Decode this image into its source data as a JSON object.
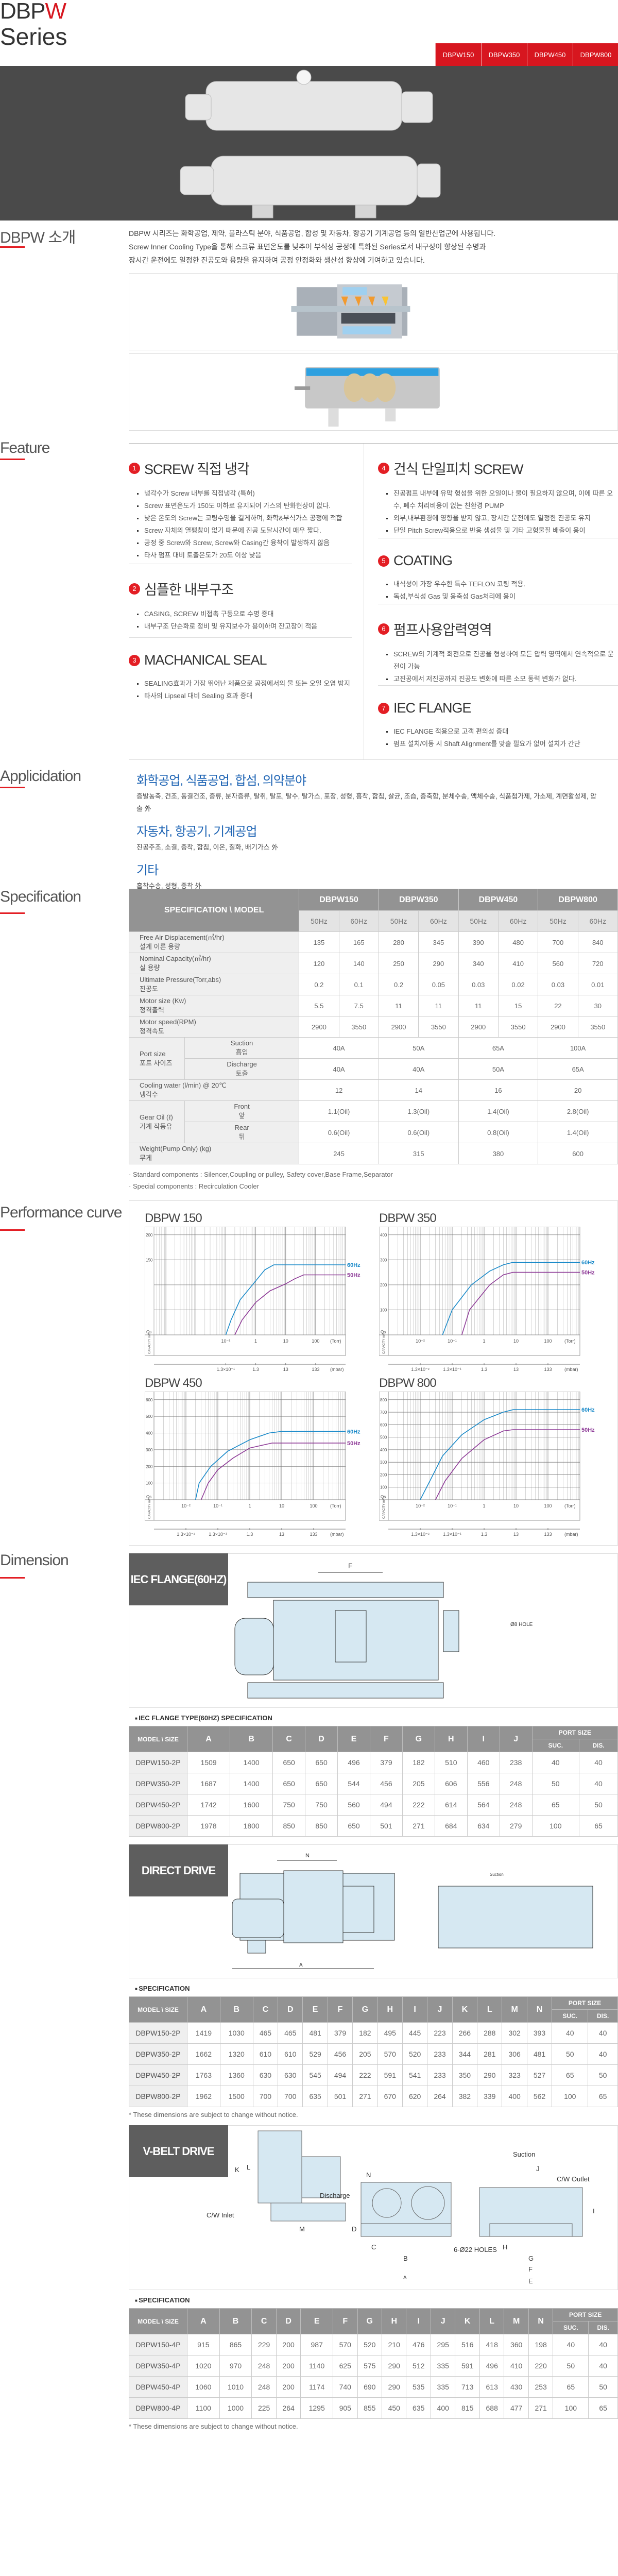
{
  "header": {
    "brand_main": "DBP",
    "brand_accent": "W",
    "brand_sub": "Series",
    "tabs": [
      "DBPW150",
      "DBPW350",
      "DBPW450",
      "DBPW800"
    ],
    "accent_color": "#d7161f"
  },
  "intro": {
    "title": "DBPW 소개",
    "lines": [
      "DBPW 시리즈는 화학공업, 제약, 플라스틱 분야, 식품공업, 합성 및 자동차, 항공기 기계공업 등의 일반산업군에 사용됩니다.",
      "Screw Inner Cooling Type을 통해 스크류 표면온도를 낮추어 부식성 공정에 특화된 Series로서 내구성이 향상된 수명과",
      "장시간 운전에도 일정한 진공도와 용량을 유지하여 공정 안정화와 생산성 향상에 기여하고 있습니다."
    ]
  },
  "feature": {
    "title": "Feature",
    "left": [
      {
        "num": "1",
        "title": "SCREW 직접 냉각",
        "bullets": [
          "냉각수가 Screw 내부를 직접냉각 (특허)",
          "Screw 표면온도가 150도 이하로 유지되어 가스의 탄화현상이 없다.",
          "낮은 온도의 Screw는 코팅수명을 길게하며, 화학&부식가스 공정에 적합",
          "Screw 자체의 열팽창이 없기 때문에 진공 도달시간이 매우 짧다.",
          "공정 중 Screw와 Screw, Screw와 Casing간 융착이 발생하지 않음",
          "타사 펌프 대비 토출온도가 20도 이상 낮음"
        ]
      },
      {
        "num": "2",
        "title": "심플한 내부구조",
        "bullets": [
          "CASING, SCREW 비접촉 구동으로 수명 증대",
          "내부구조 단순화로 정비 및 유지보수가 용이하며 잔고장이 적음"
        ]
      },
      {
        "num": "3",
        "title": "MACHANICAL SEAL",
        "bullets": [
          "SEALING효과가 가장 뛰어난 제품으로 공정에서의 물 또는 오일 오염 방지",
          "타사의 Lipseal 대비 Sealing 효과 증대"
        ]
      }
    ],
    "right": [
      {
        "num": "4",
        "title": "건식 단일피치 SCREW",
        "bullets": [
          "진공펌프 내부에 유막 형성을 위한 오일이나 물이 필요하지 않으며, 이에 따른 오수, 폐수 처리비용이 없는 친환경 PUMP",
          "외부,내부환경에 영향을 받지 않고, 장시간 운전에도 일정한 진공도 유지",
          "단일 Pitch Screw적용으로 반응 생성물 및 기타 고형물질 배출이 용이"
        ]
      },
      {
        "num": "5",
        "title": "COATING",
        "bullets": [
          "내식성이 가장 우수한 특수 TEFLON 코팅 적용.",
          "독성,부식성 Gas 및 응축성 Gas처리에 용이"
        ]
      },
      {
        "num": "6",
        "title": "펌프사용압력영역",
        "bullets": [
          "SCREW의 기계적 회전으로 진공을 형성하여 모든 압력 영역에서 연속적으로 운전이 가능",
          "고진공에서 저진공까지 진공도 변화에 따른 소모 동력 변화가 없다."
        ]
      },
      {
        "num": "7",
        "title": "IEC FLANGE",
        "bullets": [
          "IEC FLANGE 적용으로 고객 편의성 증대",
          "펌프 설치/이동 시 Shaft Alignment를 맞출 필요가 없어 설치가 간단"
        ]
      }
    ]
  },
  "application": {
    "title": "Applicidation",
    "groups": [
      {
        "heading": "화학공업, 식품공업, 합섬, 의약분야",
        "text": "증발농축, 건조, 동결건조, 증류, 분자증류, 탈취, 탈포, 탈수, 탈가스, 포장, 성형, 흡착, 함침, 살균, 조습, 증축합, 분체수송, 액체수송, 식품첨가제, 가소제, 계면활성제, 압출 外"
      },
      {
        "heading": "자동차, 항공기, 기계공업",
        "text": "진공주조, 소결, 증착, 함침, 이온, 질화, 배기가스 外"
      },
      {
        "heading": "기타",
        "text": "흡착수송, 성형, 증착 外"
      }
    ]
  },
  "specification": {
    "title": "Specification",
    "corner": "SPECIFICATION \\ MODEL",
    "models": [
      "DBPW150",
      "DBPW350",
      "DBPW450",
      "DBPW800"
    ],
    "freqs": [
      "50Hz",
      "60Hz"
    ],
    "rows": [
      {
        "en": "Free Air Displacement(㎥/hr)",
        "ko": "설계 이론 용량",
        "values": [
          "135",
          "165",
          "280",
          "345",
          "390",
          "480",
          "700",
          "840"
        ]
      },
      {
        "en": "Nominal Capacity(㎥/hr)",
        "ko": "실 용량",
        "values": [
          "120",
          "140",
          "250",
          "290",
          "340",
          "410",
          "560",
          "720"
        ]
      },
      {
        "en": "Ultimate Pressure(Torr,abs)",
        "ko": "진공도",
        "values": [
          "0.2",
          "0.1",
          "0.2",
          "0.05",
          "0.03",
          "0.02",
          "0.03",
          "0.01"
        ]
      },
      {
        "en": "Motor size (Kw)",
        "ko": "정격출력",
        "values": [
          "5.5",
          "7.5",
          "11",
          "11",
          "11",
          "15",
          "22",
          "30"
        ]
      },
      {
        "en": "Motor speed(RPM)",
        "ko": "정격속도",
        "values": [
          "2900",
          "3550",
          "2900",
          "3550",
          "2900",
          "3550",
          "2900",
          "3550"
        ]
      }
    ],
    "groups": [
      {
        "en": "Port size",
        "ko": "포트 사이즈",
        "subs": [
          {
            "en": "Suction",
            "ko": "흡입",
            "values": [
              "40A",
              "50A",
              "65A",
              "100A"
            ]
          },
          {
            "en": "Discharge",
            "ko": "토출",
            "values": [
              "40A",
              "40A",
              "50A",
              "65A"
            ]
          }
        ]
      },
      {
        "en": "Cooling water (l/min) @ 20℃",
        "ko": "냉각수",
        "values": [
          "12",
          "14",
          "16",
          "20"
        ]
      },
      {
        "en": "Gear Oil (ℓ)",
        "ko": "기계 작동유",
        "subs": [
          {
            "en": "Front",
            "ko": "앞",
            "values": [
              "1.1(Oil)",
              "1.3(Oil)",
              "1.4(Oil)",
              "2.8(Oil)"
            ]
          },
          {
            "en": "Rear",
            "ko": "뒤",
            "values": [
              "0.6(Oil)",
              "0.6(Oil)",
              "0.8(Oil)",
              "1.4(Oil)"
            ]
          }
        ]
      },
      {
        "en": "Weight(Pump Only) (kg)",
        "ko": "무게",
        "values": [
          "245",
          "315",
          "380",
          "600"
        ]
      }
    ],
    "notes": [
      "· Standard components : Silencer,Coupling or pulley, Safety cover,Base Frame,Separator",
      "· Special components : Recirculation Cooler"
    ]
  },
  "performance": {
    "title": "Performance curve"
  },
  "chart_data": [
    {
      "type": "line",
      "title": "DBPW 150",
      "xscale": "log",
      "xlabel": "(Torr)",
      "x2label": "(mbar)",
      "ylabel": "CAPACITY m³/h",
      "y0label": "Qs",
      "xlim": [
        0.0004,
        1000
      ],
      "ylim": [
        0,
        200
      ],
      "yticks": [
        50,
        100,
        150,
        200
      ],
      "ytick_labels": [
        "",
        "",
        "150",
        "200"
      ],
      "xticks": [
        0.1,
        1,
        10,
        100
      ],
      "xtick_labels": [
        "10⁻¹",
        "1",
        "10",
        "100"
      ],
      "x2tick_labels": [
        "1.3×10⁻¹",
        "1.3",
        "13",
        "133"
      ],
      "grid": true,
      "series": [
        {
          "name": "60Hz",
          "color": "#1a8ac9",
          "points": [
            [
              0.1,
              0
            ],
            [
              0.15,
              30
            ],
            [
              0.3,
              70
            ],
            [
              1,
              108
            ],
            [
              2,
              130
            ],
            [
              4,
              140
            ],
            [
              1000,
              140
            ]
          ]
        },
        {
          "name": "50Hz",
          "color": "#8e3b97",
          "points": [
            [
              0.2,
              0
            ],
            [
              0.35,
              30
            ],
            [
              1,
              65
            ],
            [
              3,
              88
            ],
            [
              10,
              102
            ],
            [
              20,
              112
            ],
            [
              40,
              120
            ],
            [
              1000,
              120
            ]
          ]
        }
      ]
    },
    {
      "type": "line",
      "title": "DBPW 350",
      "xscale": "log",
      "xlabel": "(Torr)",
      "x2label": "(mbar)",
      "ylabel": "CAPACITY m³/h",
      "y0label": "Qs",
      "xlim": [
        0.001,
        1000
      ],
      "ylim": [
        0,
        400
      ],
      "yticks": [
        100,
        200,
        300,
        400
      ],
      "ytick_labels": [
        "100",
        "200",
        "300",
        "400"
      ],
      "xticks": [
        0.01,
        0.1,
        1,
        10,
        100
      ],
      "xtick_labels": [
        "10⁻²",
        "10⁻¹",
        "1",
        "10",
        "100"
      ],
      "x2tick_labels": [
        "1.3×10⁻²",
        "1.3×10⁻¹",
        "1.3",
        "13",
        "133"
      ],
      "grid": true,
      "series": [
        {
          "name": "60Hz",
          "color": "#1a8ac9",
          "points": [
            [
              0.05,
              0
            ],
            [
              0.1,
              100
            ],
            [
              0.4,
              200
            ],
            [
              1.5,
              255
            ],
            [
              4,
              280
            ],
            [
              8,
              290
            ],
            [
              1000,
              290
            ]
          ]
        },
        {
          "name": "50Hz",
          "color": "#8e3b97",
          "points": [
            [
              0.2,
              0
            ],
            [
              0.35,
              100
            ],
            [
              1.5,
              200
            ],
            [
              4,
              240
            ],
            [
              8,
              250
            ],
            [
              1000,
              250
            ]
          ]
        }
      ]
    },
    {
      "type": "line",
      "title": "DBPW 450",
      "xscale": "log",
      "xlabel": "(Torr)",
      "x2label": "(mbar)",
      "ylabel": "CAPACITY m³/h",
      "y0label": "Qs",
      "xlim": [
        0.001,
        1000
      ],
      "ylim": [
        0,
        600
      ],
      "yticks": [
        100,
        200,
        300,
        400,
        500,
        600
      ],
      "ytick_labels": [
        "100",
        "200",
        "300",
        "400",
        "500",
        "600"
      ],
      "xticks": [
        0.01,
        0.1,
        1,
        10,
        100
      ],
      "xtick_labels": [
        "10⁻²",
        "10⁻¹",
        "1",
        "10",
        "100"
      ],
      "x2tick_labels": [
        "1.3×10⁻²",
        "1.3×10⁻¹",
        "1.3",
        "13",
        "133"
      ],
      "grid": true,
      "series": [
        {
          "name": "60Hz",
          "color": "#1a8ac9",
          "points": [
            [
              0.02,
              0
            ],
            [
              0.026,
              100
            ],
            [
              0.06,
              200
            ],
            [
              0.2,
              290
            ],
            [
              1,
              360
            ],
            [
              4,
              400
            ],
            [
              10,
              410
            ],
            [
              1000,
              410
            ]
          ]
        },
        {
          "name": "50Hz",
          "color": "#8e3b97",
          "points": [
            [
              0.03,
              0
            ],
            [
              0.05,
              100
            ],
            [
              0.1,
              180
            ],
            [
              0.3,
              250
            ],
            [
              1,
              310
            ],
            [
              5,
              340
            ],
            [
              1000,
              340
            ]
          ]
        }
      ]
    },
    {
      "type": "line",
      "title": "DBPW 800",
      "xscale": "log",
      "xlabel": "(Torr)",
      "x2label": "(mbar)",
      "ylabel": "CAPACITY m³/h",
      "y0label": "Qs",
      "xlim": [
        0.001,
        1000
      ],
      "ylim": [
        0,
        800
      ],
      "yticks": [
        100,
        200,
        300,
        400,
        500,
        600,
        700,
        800
      ],
      "ytick_labels": [
        "100",
        "200",
        "300",
        "400",
        "500",
        "600",
        "700",
        "800"
      ],
      "xticks": [
        0.01,
        0.1,
        1,
        10,
        100
      ],
      "xtick_labels": [
        "10⁻²",
        "10⁻¹",
        "1",
        "10",
        "100"
      ],
      "x2tick_labels": [
        "1.3×10⁻²",
        "1.3×10⁻¹",
        "1.3",
        "13",
        "133"
      ],
      "grid": true,
      "series": [
        {
          "name": "60Hz",
          "color": "#1a8ac9",
          "points": [
            [
              0.01,
              0
            ],
            [
              0.02,
              150
            ],
            [
              0.05,
              350
            ],
            [
              0.2,
              520
            ],
            [
              1,
              640
            ],
            [
              4,
              700
            ],
            [
              8,
              720
            ],
            [
              1000,
              720
            ]
          ]
        },
        {
          "name": "50Hz",
          "color": "#8e3b97",
          "points": [
            [
              0.03,
              0
            ],
            [
              0.06,
              150
            ],
            [
              0.2,
              330
            ],
            [
              1,
              480
            ],
            [
              4,
              550
            ],
            [
              8,
              560
            ],
            [
              1000,
              560
            ]
          ]
        }
      ]
    }
  ],
  "dimension": {
    "title": "Dimension",
    "corner": "MODEL \\ SIZE",
    "port_size": "PORT SIZE",
    "suc": "SUC.",
    "dis": "DIS.",
    "footnote": "* These dimensions are subject to change without notice.",
    "iec": {
      "label": "IEC FLANGE(60HZ)",
      "table_title": "IEC FLANGE TYPE(60HZ) SPECIFICATION",
      "drawing_labels": [
        "F",
        "Ø8 HOLE"
      ],
      "cols": [
        "A",
        "B",
        "C",
        "D",
        "E",
        "F",
        "G",
        "H",
        "I",
        "J"
      ],
      "rows": [
        [
          "DBPW150-2P",
          "1509",
          "1400",
          "650",
          "650",
          "496",
          "379",
          "182",
          "510",
          "460",
          "238",
          "40",
          "40"
        ],
        [
          "DBPW350-2P",
          "1687",
          "1400",
          "650",
          "650",
          "544",
          "456",
          "205",
          "606",
          "556",
          "248",
          "50",
          "40"
        ],
        [
          "DBPW450-2P",
          "1742",
          "1600",
          "750",
          "750",
          "560",
          "494",
          "222",
          "614",
          "564",
          "248",
          "65",
          "50"
        ],
        [
          "DBPW800-2P",
          "1978",
          "1800",
          "850",
          "850",
          "650",
          "501",
          "271",
          "684",
          "634",
          "279",
          "100",
          "65"
        ]
      ]
    },
    "direct": {
      "label": "DIRECT DRIVE",
      "table_title": "SPECIFICATION",
      "drawing_labels": [
        "N",
        "A",
        "Suction"
      ],
      "cols": [
        "A",
        "B",
        "C",
        "D",
        "E",
        "F",
        "G",
        "H",
        "I",
        "J",
        "K",
        "L",
        "M",
        "N"
      ],
      "rows": [
        [
          "DBPW150-2P",
          "1419",
          "1030",
          "465",
          "465",
          "481",
          "379",
          "182",
          "495",
          "445",
          "223",
          "266",
          "288",
          "302",
          "393",
          "40",
          "40"
        ],
        [
          "DBPW350-2P",
          "1662",
          "1320",
          "610",
          "610",
          "529",
          "456",
          "205",
          "570",
          "520",
          "233",
          "344",
          "281",
          "306",
          "481",
          "50",
          "40"
        ],
        [
          "DBPW450-2P",
          "1763",
          "1360",
          "630",
          "630",
          "545",
          "494",
          "222",
          "591",
          "541",
          "233",
          "350",
          "290",
          "323",
          "527",
          "65",
          "50"
        ],
        [
          "DBPW800-2P",
          "1962",
          "1500",
          "700",
          "700",
          "635",
          "501",
          "271",
          "670",
          "620",
          "264",
          "382",
          "339",
          "400",
          "562",
          "100",
          "65"
        ]
      ]
    },
    "vbelt": {
      "label": "V-BELT DRIVE",
      "table_title": "SPECIFICATION",
      "drawing_labels": {
        "k": "K",
        "l": "L",
        "m": "M",
        "cw_inlet": "C/W Inlet",
        "suction": "Suction",
        "j": "J",
        "cw_outlet": "C/W Outlet",
        "n": "N",
        "discharge": "Discharge",
        "d": "D",
        "c": "C",
        "b": "B",
        "a": "A",
        "holes": "6-Ø22 HOLES",
        "h": "H",
        "g": "G",
        "f": "F",
        "e": "E",
        "i": "I"
      },
      "cols": [
        "A",
        "B",
        "C",
        "D",
        "E",
        "F",
        "G",
        "H",
        "I",
        "J",
        "K",
        "L",
        "M",
        "N"
      ],
      "rows": [
        [
          "DBPW150-4P",
          "915",
          "865",
          "229",
          "200",
          "987",
          "570",
          "520",
          "210",
          "476",
          "295",
          "516",
          "418",
          "360",
          "198",
          "40",
          "40"
        ],
        [
          "DBPW350-4P",
          "1020",
          "970",
          "248",
          "200",
          "1140",
          "625",
          "575",
          "290",
          "512",
          "335",
          "591",
          "496",
          "410",
          "220",
          "50",
          "40"
        ],
        [
          "DBPW450-4P",
          "1060",
          "1010",
          "248",
          "200",
          "1174",
          "740",
          "690",
          "290",
          "535",
          "335",
          "713",
          "613",
          "430",
          "253",
          "65",
          "50"
        ],
        [
          "DBPW800-4P",
          "1100",
          "1000",
          "225",
          "264",
          "1295",
          "905",
          "855",
          "450",
          "635",
          "400",
          "815",
          "688",
          "477",
          "271",
          "100",
          "65"
        ]
      ]
    }
  }
}
